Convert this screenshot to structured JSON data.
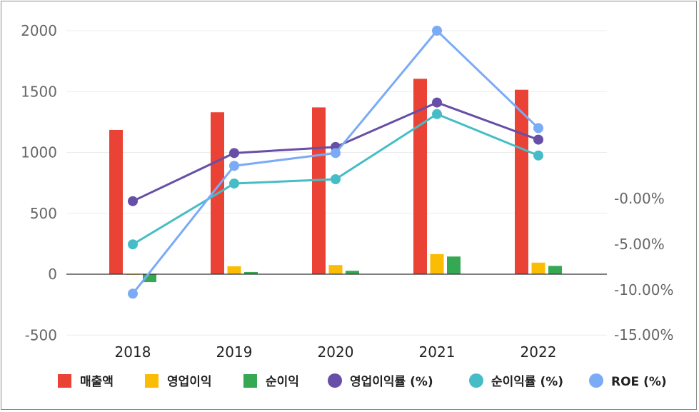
{
  "chart_data": {
    "type": "bar",
    "categories": [
      "2018",
      "2019",
      "2020",
      "2021",
      "2022"
    ],
    "left_axis": {
      "ticks": [
        "2000",
        "1500",
        "1000",
        "500",
        "0",
        "-500"
      ],
      "ylim": [
        -500,
        2000
      ]
    },
    "right_axis": {
      "ticks": [
        "-0.00%",
        "-5.00%",
        "-10.00%",
        "-15.00%"
      ]
    },
    "series": [
      {
        "name": "매출액",
        "kind": "bar",
        "axis": "left",
        "color": "#ea4335",
        "values": [
          1185,
          1330,
          1370,
          1605,
          1515
        ]
      },
      {
        "name": "영업이익",
        "kind": "bar",
        "axis": "left",
        "color": "#fbbc04",
        "values": [
          -5,
          65,
          75,
          165,
          95
        ]
      },
      {
        "name": "순이익",
        "kind": "bar",
        "axis": "left",
        "color": "#34a853",
        "values": [
          -65,
          18,
          28,
          145,
          68
        ]
      },
      {
        "name": "영업이익률 (%)",
        "kind": "line",
        "axis": "right",
        "color": "#674ea7",
        "values": [
          600,
          995,
          1045,
          1410,
          1105
        ]
      },
      {
        "name": "순이익률 (%)",
        "kind": "line",
        "axis": "right",
        "color": "#46bdc6",
        "values": [
          245,
          745,
          780,
          1315,
          975
        ]
      },
      {
        "name": "ROE (%)",
        "kind": "line",
        "axis": "right",
        "color": "#7baaf7",
        "values": [
          -160,
          890,
          995,
          2000,
          1200
        ]
      }
    ],
    "grid": true,
    "legend_position": "bottom"
  }
}
